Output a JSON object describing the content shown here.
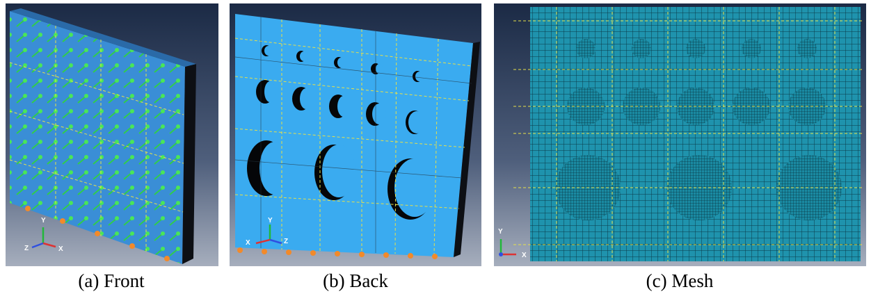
{
  "panels": [
    {
      "caption": "(a) Front",
      "axes": {
        "x": "X",
        "y": "Y",
        "z": "Z"
      }
    },
    {
      "caption": "(b) Back",
      "axes": {
        "x": "X",
        "y": "Y",
        "z": "Z"
      }
    },
    {
      "caption": "(c) Mesh",
      "axes": {
        "x": "X",
        "y": "Y"
      }
    }
  ]
}
